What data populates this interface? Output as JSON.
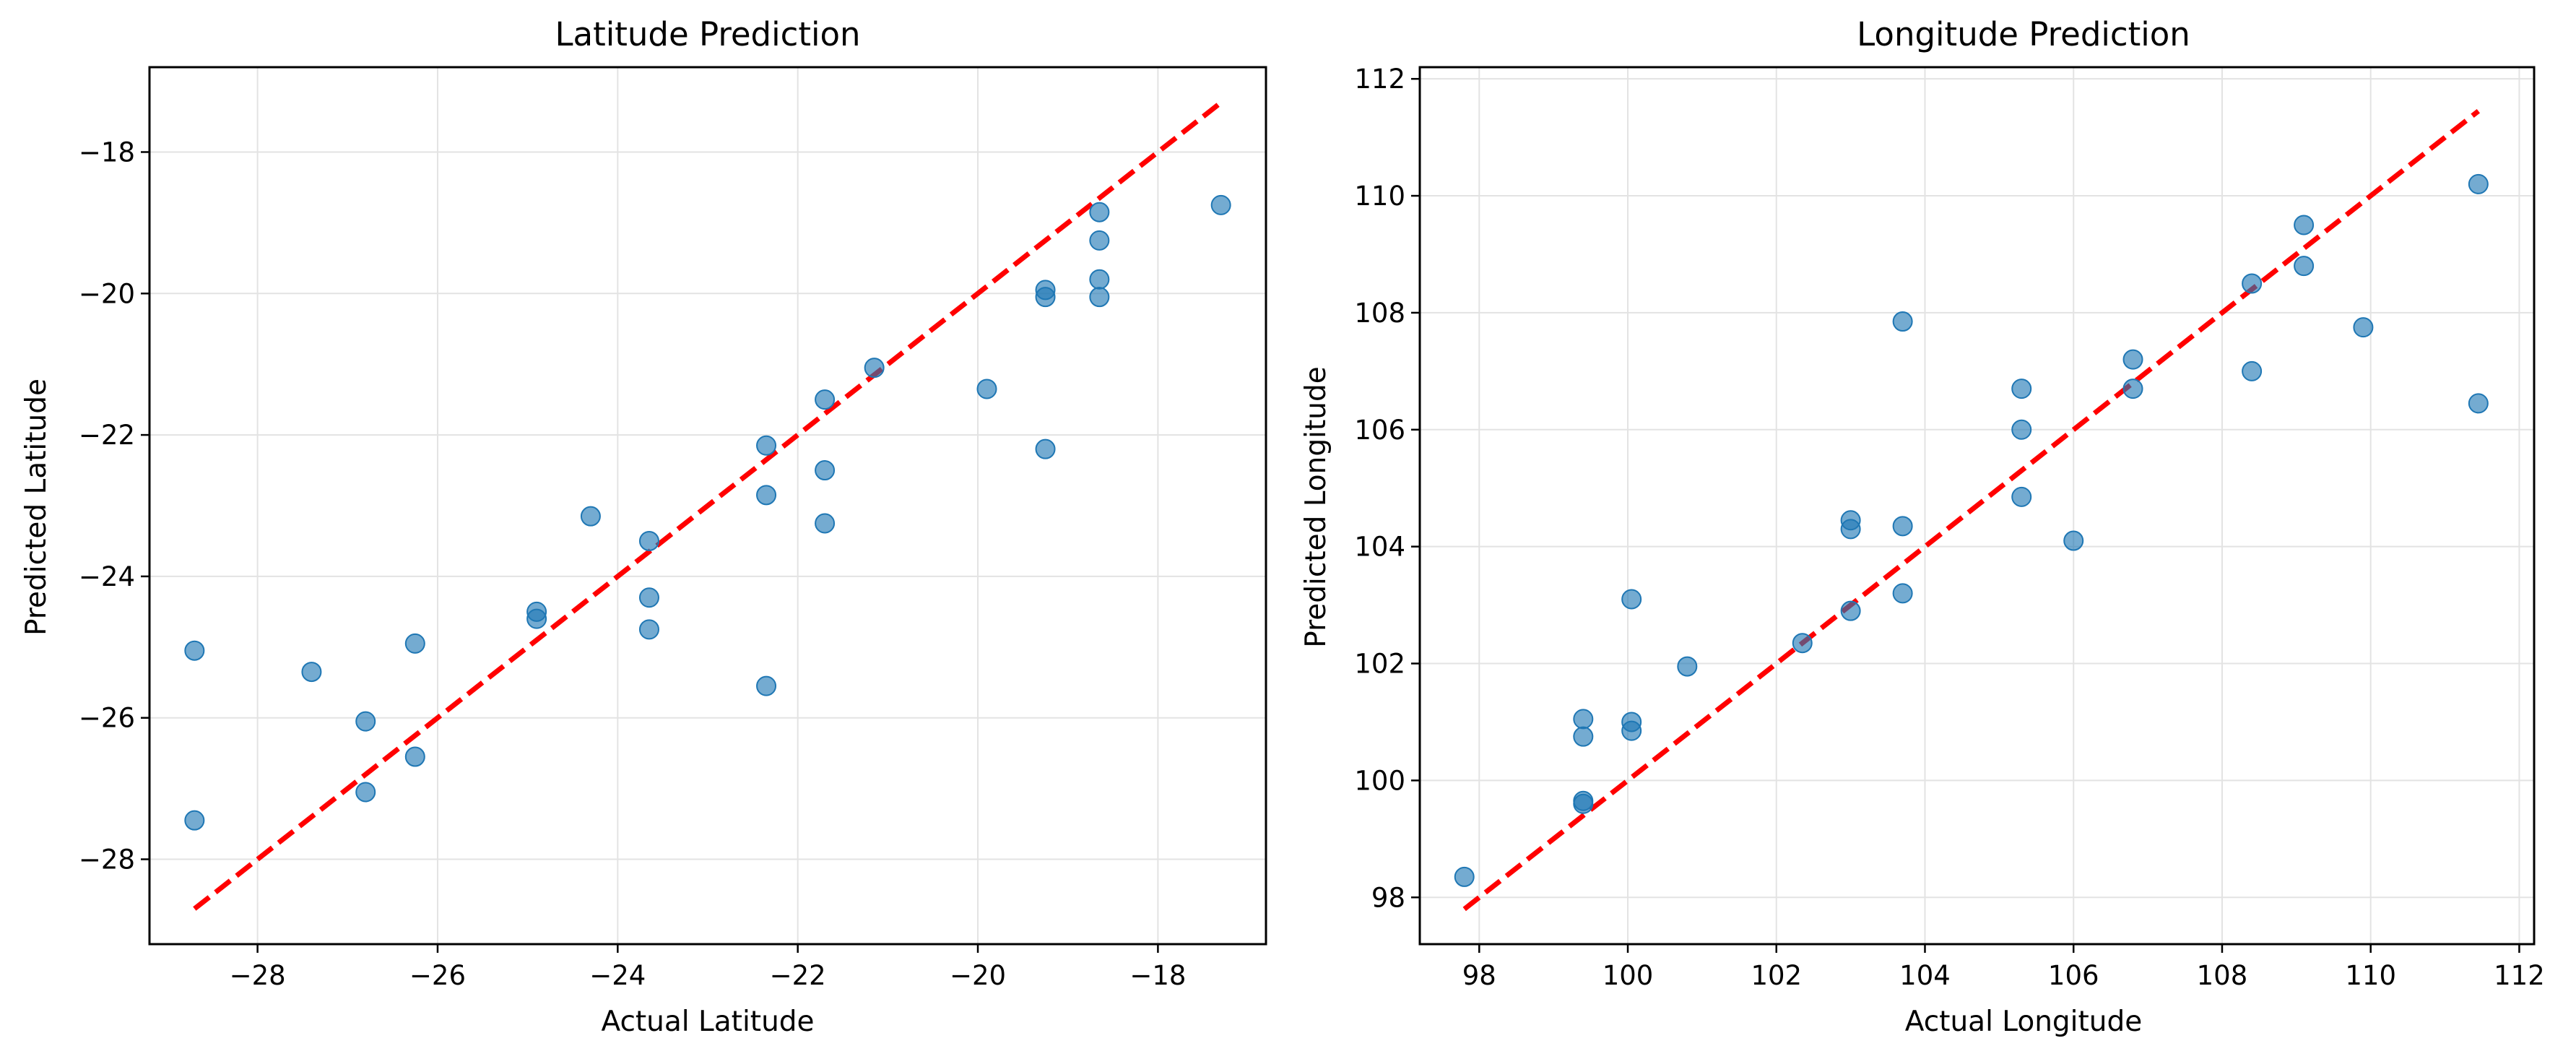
{
  "chart_data": [
    {
      "type": "scatter",
      "title": "Latitude Prediction",
      "xlabel": "Actual Latitude",
      "ylabel": "Predicted Latitude",
      "xlim": [
        -29.2,
        -16.8
      ],
      "ylim": [
        -29.2,
        -16.8
      ],
      "xticks": [
        -28,
        -26,
        -24,
        -22,
        -20,
        -18
      ],
      "yticks": [
        -28,
        -26,
        -24,
        -22,
        -20,
        -18
      ],
      "xtick_labels": [
        "−28",
        "−26",
        "−24",
        "−22",
        "−20",
        "−18"
      ],
      "ytick_labels": [
        "−28",
        "−26",
        "−24",
        "−22",
        "−20",
        "−18"
      ],
      "grid": true,
      "point_color": "#1f77b4",
      "reference_line": {
        "x": [
          -28.7,
          -17.3
        ],
        "y": [
          -28.7,
          -17.3
        ],
        "color": "#ff0000",
        "style": "dashed"
      },
      "x": [
        -28.7,
        -28.7,
        -27.4,
        -26.8,
        -26.8,
        -26.25,
        -26.25,
        -24.9,
        -24.9,
        -24.3,
        -23.65,
        -23.65,
        -23.65,
        -22.35,
        -22.35,
        -22.35,
        -21.7,
        -21.7,
        -21.7,
        -21.15,
        -19.9,
        -19.25,
        -19.25,
        -19.25,
        -18.65,
        -18.65,
        -18.65,
        -18.65,
        -17.3
      ],
      "y": [
        -25.05,
        -27.45,
        -25.35,
        -26.05,
        -27.05,
        -24.95,
        -26.55,
        -24.5,
        -24.6,
        -23.15,
        -23.5,
        -24.3,
        -24.75,
        -22.15,
        -22.85,
        -25.55,
        -21.5,
        -22.5,
        -23.25,
        -21.05,
        -21.35,
        -19.95,
        -20.05,
        -22.2,
        -18.85,
        -19.25,
        -19.8,
        -20.05,
        -18.75
      ]
    },
    {
      "type": "scatter",
      "title": "Longitude Prediction",
      "xlabel": "Actual Longitude",
      "ylabel": "Predicted Longitude",
      "xlim": [
        97.2,
        112.2
      ],
      "ylim": [
        97.2,
        112.2
      ],
      "xticks": [
        98,
        100,
        102,
        104,
        106,
        108,
        110,
        112
      ],
      "yticks": [
        98,
        100,
        102,
        104,
        106,
        108,
        110,
        112
      ],
      "xtick_labels": [
        "98",
        "100",
        "102",
        "104",
        "106",
        "108",
        "110",
        "112"
      ],
      "ytick_labels": [
        "98",
        "100",
        "102",
        "104",
        "106",
        "108",
        "110",
        "112"
      ],
      "grid": true,
      "point_color": "#1f77b4",
      "reference_line": {
        "x": [
          97.8,
          111.45
        ],
        "y": [
          97.8,
          111.45
        ],
        "color": "#ff0000",
        "style": "dashed"
      },
      "x": [
        97.8,
        99.4,
        99.4,
        99.4,
        99.4,
        100.05,
        100.05,
        100.05,
        100.8,
        102.35,
        103.0,
        103.0,
        103.0,
        103.7,
        103.7,
        103.7,
        105.3,
        105.3,
        105.3,
        106.0,
        106.8,
        106.8,
        108.4,
        108.4,
        109.1,
        109.1,
        109.9,
        111.45,
        111.45
      ],
      "y": [
        98.35,
        99.6,
        99.65,
        100.75,
        101.05,
        100.85,
        101.0,
        103.1,
        101.95,
        102.35,
        102.9,
        104.3,
        104.45,
        103.2,
        104.35,
        107.85,
        104.85,
        106.0,
        106.7,
        104.1,
        106.7,
        107.2,
        108.5,
        107.0,
        108.8,
        109.5,
        107.75,
        106.45,
        110.2
      ]
    }
  ]
}
